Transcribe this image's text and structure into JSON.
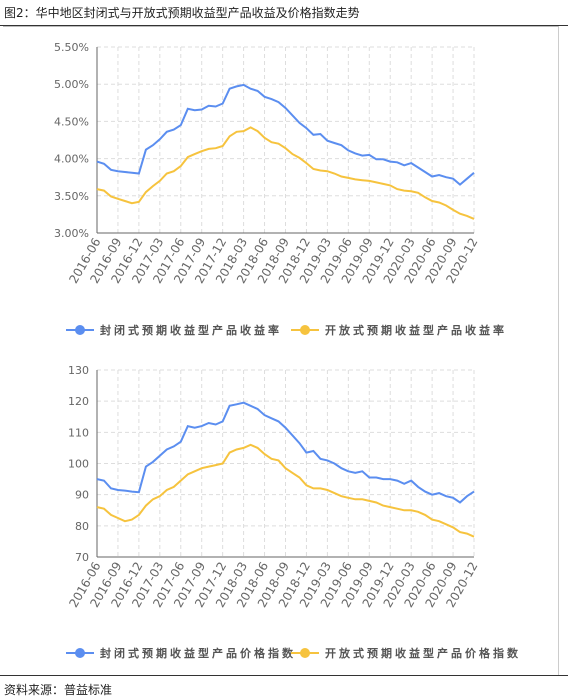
{
  "title": "图2：华中地区封闭式与开放式预期收益型产品收益及价格指数走势",
  "source": "资料来源：普益标准",
  "chart_data": [
    {
      "type": "line",
      "categories": [
        "2016-06",
        null,
        null,
        "2016-09",
        null,
        null,
        "2016-12",
        null,
        null,
        "2017-03",
        null,
        null,
        "2017-06",
        null,
        null,
        "2017-09",
        null,
        null,
        "2017-12",
        null,
        null,
        "2018-03",
        null,
        null,
        "2018-06",
        null,
        null,
        "2018-09",
        null,
        null,
        "2018-12",
        null,
        null,
        "2019-03",
        null,
        null,
        "2019-06",
        null,
        null,
        "2019-09",
        null,
        null,
        "2019-12",
        null,
        null,
        "2020-03",
        null,
        null,
        "2020-06",
        null,
        null,
        "2020-09",
        null,
        null,
        "2020-12"
      ],
      "ylim": [
        3.0,
        5.5
      ],
      "yticks": [
        {
          "value": 3.0,
          "label": "3.00%"
        },
        {
          "value": 3.5,
          "label": "3.50%"
        },
        {
          "value": 4.0,
          "label": "4.00%"
        },
        {
          "value": 4.5,
          "label": "4.50%"
        },
        {
          "value": 5.0,
          "label": "5.00%"
        },
        {
          "value": 5.5,
          "label": "5.50%"
        }
      ],
      "grid": true,
      "series": [
        {
          "name": "封闭式预期收益型产品收益率",
          "color": "#5b8ef0",
          "values": [
            3.96,
            3.93,
            3.85,
            3.83,
            3.82,
            3.81,
            3.8,
            4.12,
            4.18,
            4.26,
            4.36,
            4.39,
            4.45,
            4.67,
            4.65,
            4.66,
            4.71,
            4.7,
            4.74,
            4.94,
            4.97,
            4.99,
            4.94,
            4.91,
            4.83,
            4.8,
            4.76,
            4.68,
            4.58,
            4.48,
            4.41,
            4.32,
            4.33,
            4.24,
            4.21,
            4.18,
            4.11,
            4.07,
            4.04,
            4.05,
            3.99,
            3.99,
            3.96,
            3.95,
            3.91,
            3.94,
            3.88,
            3.82,
            3.76,
            3.78,
            3.75,
            3.73,
            3.65,
            3.73,
            3.81
          ]
        },
        {
          "name": "开放式预期收益型产品收益率",
          "color": "#f6c33e",
          "values": [
            3.59,
            3.57,
            3.49,
            3.46,
            3.43,
            3.4,
            3.42,
            3.55,
            3.63,
            3.7,
            3.8,
            3.83,
            3.9,
            4.02,
            4.06,
            4.1,
            4.13,
            4.14,
            4.17,
            4.3,
            4.36,
            4.37,
            4.42,
            4.37,
            4.28,
            4.22,
            4.2,
            4.14,
            4.06,
            4.01,
            3.94,
            3.86,
            3.84,
            3.83,
            3.8,
            3.76,
            3.74,
            3.72,
            3.71,
            3.7,
            3.68,
            3.66,
            3.64,
            3.59,
            3.57,
            3.56,
            3.54,
            3.48,
            3.43,
            3.41,
            3.37,
            3.31,
            3.26,
            3.23,
            3.19
          ]
        }
      ]
    },
    {
      "type": "line",
      "categories": [
        "2016-06",
        null,
        null,
        "2016-09",
        null,
        null,
        "2016-12",
        null,
        null,
        "2017-03",
        null,
        null,
        "2017-06",
        null,
        null,
        "2017-09",
        null,
        null,
        "2017-12",
        null,
        null,
        "2018-03",
        null,
        null,
        "2018-06",
        null,
        null,
        "2018-09",
        null,
        null,
        "2018-12",
        null,
        null,
        "2019-03",
        null,
        null,
        "2019-06",
        null,
        null,
        "2019-09",
        null,
        null,
        "2019-12",
        null,
        null,
        "2020-03",
        null,
        null,
        "2020-06",
        null,
        null,
        "2020-09",
        null,
        null,
        "2020-12"
      ],
      "ylim": [
        70,
        130
      ],
      "yticks": [
        70,
        80,
        90,
        100,
        110,
        120,
        130
      ],
      "grid": true,
      "series": [
        {
          "name": "封闭式预期收益型产品价格指数",
          "color": "#5b8ef0",
          "values": [
            95,
            94.5,
            92,
            91.5,
            91.3,
            91,
            90.8,
            99,
            100.5,
            102.5,
            104.5,
            105.5,
            107,
            112,
            111.5,
            112,
            113,
            112.5,
            113.5,
            118.5,
            119,
            119.5,
            118.5,
            117.5,
            115.5,
            114.5,
            113.5,
            111.5,
            109,
            106.5,
            103.5,
            104,
            101.5,
            101,
            100,
            98.5,
            97.5,
            97,
            97.5,
            95.5,
            95.5,
            95,
            95,
            94.5,
            93.5,
            94.5,
            92.5,
            91,
            90,
            90.5,
            89.5,
            89,
            87.5,
            89.5,
            91
          ]
        },
        {
          "name": "开放式预期收益型产品价格指数",
          "color": "#f6c33e",
          "values": [
            86,
            85.5,
            83.5,
            82.5,
            81.5,
            82,
            83.5,
            86.5,
            88.5,
            89.5,
            91.5,
            92.5,
            94.5,
            96.5,
            97.5,
            98.5,
            99,
            99.5,
            100,
            103.5,
            104.5,
            105,
            106,
            105,
            103,
            101.5,
            101,
            98.5,
            97,
            95.5,
            93,
            92,
            92,
            91.5,
            90.5,
            89.5,
            89,
            88.5,
            88.5,
            88,
            87.5,
            86.5,
            86,
            85.5,
            85,
            85,
            84.5,
            83.5,
            82,
            81.5,
            80.5,
            79.5,
            78,
            77.5,
            76.5
          ]
        }
      ]
    }
  ]
}
